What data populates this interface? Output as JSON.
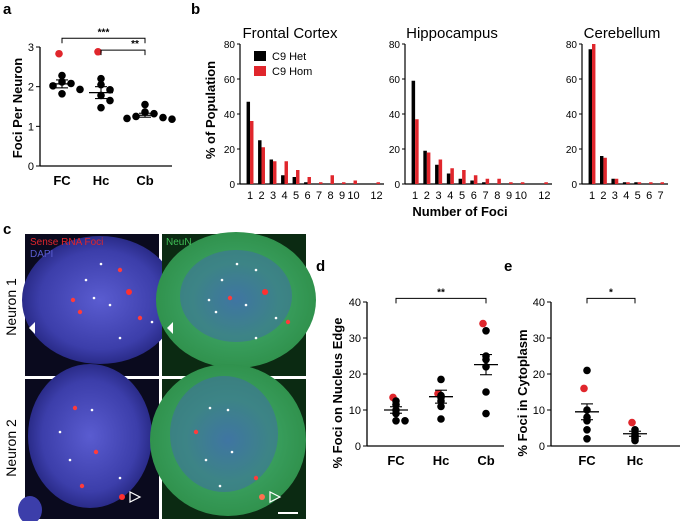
{
  "panel_labels": [
    "a",
    "b",
    "c",
    "d",
    "e"
  ],
  "colors": {
    "het": "#000000",
    "hom": "#e0262c",
    "nucleus": "#2d2f9a",
    "neun": "#2f9a3a"
  },
  "chart_data": [
    {
      "id": "a",
      "type": "scatter",
      "ylabel": "Foci Per Neuron",
      "ylim": [
        0,
        3
      ],
      "yticks": [
        "0",
        "1",
        "2",
        "3"
      ],
      "categories": [
        "FC",
        "Hc",
        "Cb"
      ],
      "points": [
        [
          {
            "y": 2.83,
            "c": "red"
          },
          {
            "y": 2.28,
            "c": "black"
          },
          {
            "y": 2.12,
            "c": "black"
          },
          {
            "y": 2.08,
            "c": "black"
          },
          {
            "y": 2.02,
            "c": "black"
          },
          {
            "y": 1.93,
            "c": "black"
          },
          {
            "y": 1.82,
            "c": "black"
          }
        ],
        [
          {
            "y": 2.88,
            "c": "red"
          },
          {
            "y": 2.2,
            "c": "black"
          },
          {
            "y": 2.05,
            "c": "black"
          },
          {
            "y": 1.92,
            "c": "black"
          },
          {
            "y": 1.78,
            "c": "black"
          },
          {
            "y": 1.65,
            "c": "black"
          },
          {
            "y": 1.47,
            "c": "black"
          }
        ],
        [
          {
            "y": 1.55,
            "c": "black"
          },
          {
            "y": 1.36,
            "c": "black"
          },
          {
            "y": 1.32,
            "c": "black"
          },
          {
            "y": 1.25,
            "c": "black"
          },
          {
            "y": 1.22,
            "c": "black"
          },
          {
            "y": 1.2,
            "c": "black"
          },
          {
            "y": 1.18,
            "c": "black"
          }
        ]
      ],
      "means": [
        2.07,
        1.85,
        1.28
      ],
      "sems": [
        0.1,
        0.15,
        0.05
      ],
      "significance": [
        {
          "from": 0,
          "to": 2,
          "label": "***",
          "y": 3.22
        },
        {
          "from": 1,
          "to": 2,
          "label": "**",
          "y": 2.92
        }
      ]
    },
    {
      "id": "b-frontal",
      "type": "bar",
      "title": "Frontal Cortex",
      "ylabel": "% of Population",
      "ylim": [
        0,
        80
      ],
      "yticks": [
        "0",
        "20",
        "40",
        "60",
        "80"
      ],
      "xlabel": "Number of Foci",
      "categories": [
        "1",
        "2",
        "3",
        "4",
        "5",
        "6",
        "7",
        "8",
        "9",
        "10",
        "11",
        "12"
      ],
      "tick_labels": [
        "1",
        "2",
        "3",
        "4",
        "5",
        "6",
        "7",
        "8",
        "9",
        "10",
        "",
        "12"
      ],
      "series": [
        {
          "name": "C9 Het",
          "values": [
            47,
            25,
            14,
            5,
            4,
            1,
            0,
            0,
            0,
            0,
            0,
            0
          ]
        },
        {
          "name": "C9 Hom",
          "values": [
            36,
            21,
            13,
            13,
            8,
            4,
            1,
            5,
            1,
            2,
            0,
            1
          ]
        }
      ]
    },
    {
      "id": "b-hippocampus",
      "type": "bar",
      "title": "Hippocampus",
      "ylim": [
        0,
        80
      ],
      "yticks": [
        "0",
        "20",
        "40",
        "60",
        "80"
      ],
      "categories": [
        "1",
        "2",
        "3",
        "4",
        "5",
        "6",
        "7",
        "8",
        "9",
        "10",
        "11",
        "12"
      ],
      "tick_labels": [
        "1",
        "2",
        "3",
        "4",
        "5",
        "6",
        "7",
        "8",
        "9",
        "10",
        "",
        "12"
      ],
      "series": [
        {
          "name": "C9 Het",
          "values": [
            59,
            19,
            11,
            6,
            3,
            2,
            1,
            0,
            0,
            0,
            0,
            0
          ]
        },
        {
          "name": "C9 Hom",
          "values": [
            37,
            18,
            14,
            9,
            8,
            5,
            3,
            3,
            1,
            1,
            0,
            1
          ]
        }
      ]
    },
    {
      "id": "b-cerebellum",
      "type": "bar",
      "title": "Cerebellum",
      "ylim": [
        0,
        80
      ],
      "yticks": [
        "0",
        "20",
        "40",
        "60",
        "80"
      ],
      "categories": [
        "1",
        "2",
        "3",
        "4",
        "5",
        "6",
        "7"
      ],
      "tick_labels": [
        "1",
        "2",
        "3",
        "4",
        "5",
        "6",
        "7"
      ],
      "series": [
        {
          "name": "C9 Het",
          "values": [
            77,
            16,
            3,
            1,
            1,
            0,
            0
          ]
        },
        {
          "name": "C9 Hom",
          "values": [
            80,
            15,
            3,
            1,
            1,
            1,
            1
          ]
        }
      ]
    },
    {
      "id": "d",
      "type": "scatter",
      "ylabel": "% Foci on Nucleus Edge",
      "ylim": [
        0,
        40
      ],
      "yticks": [
        "0",
        "10",
        "20",
        "30",
        "40"
      ],
      "categories": [
        "FC",
        "Hc",
        "Cb"
      ],
      "points": [
        [
          {
            "y": 13.5,
            "c": "red"
          },
          {
            "y": 12.5,
            "c": "black"
          },
          {
            "y": 11.5,
            "c": "black"
          },
          {
            "y": 10,
            "c": "black"
          },
          {
            "y": 9,
            "c": "black"
          },
          {
            "y": 7,
            "c": "black"
          },
          {
            "y": 7,
            "c": "black"
          }
        ],
        [
          {
            "y": 18.5,
            "c": "black"
          },
          {
            "y": 14.5,
            "c": "red"
          },
          {
            "y": 14,
            "c": "black"
          },
          {
            "y": 13.5,
            "c": "black"
          },
          {
            "y": 12.5,
            "c": "black"
          },
          {
            "y": 11,
            "c": "black"
          },
          {
            "y": 7.5,
            "c": "black"
          }
        ],
        [
          {
            "y": 34,
            "c": "red"
          },
          {
            "y": 32,
            "c": "black"
          },
          {
            "y": 25,
            "c": "black"
          },
          {
            "y": 24,
            "c": "black"
          },
          {
            "y": 22,
            "c": "black"
          },
          {
            "y": 15,
            "c": "black"
          },
          {
            "y": 9,
            "c": "black"
          }
        ]
      ],
      "means": [
        10.0,
        13.7,
        22.6
      ],
      "sems": [
        0.9,
        1.8,
        2.8
      ],
      "significance": [
        {
          "from": 0,
          "to": 2,
          "label": "**",
          "y": 41
        }
      ]
    },
    {
      "id": "e",
      "type": "scatter",
      "ylabel": "% Foci in Cytoplasm",
      "ylim": [
        0,
        40
      ],
      "yticks": [
        "0",
        "10",
        "20",
        "30",
        "40"
      ],
      "categories": [
        "FC",
        "Hc"
      ],
      "points": [
        [
          {
            "y": 21,
            "c": "black"
          },
          {
            "y": 16,
            "c": "red"
          },
          {
            "y": 10,
            "c": "black"
          },
          {
            "y": 8,
            "c": "black"
          },
          {
            "y": 7,
            "c": "black"
          },
          {
            "y": 4.5,
            "c": "black"
          },
          {
            "y": 2,
            "c": "black"
          }
        ],
        [
          {
            "y": 6.5,
            "c": "red"
          },
          {
            "y": 4.5,
            "c": "black"
          },
          {
            "y": 3.5,
            "c": "black"
          },
          {
            "y": 3,
            "c": "black"
          },
          {
            "y": 2.5,
            "c": "black"
          },
          {
            "y": 2,
            "c": "black"
          },
          {
            "y": 1.5,
            "c": "black"
          }
        ]
      ],
      "means": [
        9.5,
        3.4
      ],
      "sems": [
        2.2,
        0.7
      ],
      "significance": [
        {
          "from": 0,
          "to": 1,
          "label": "*",
          "y": 41
        }
      ]
    }
  ],
  "micrographs": {
    "channel_sense": "Sense RNA Foci",
    "channel_dapi": "DAPI",
    "channel_neun": "NeuN",
    "rows": [
      "Neuron 1",
      "Neuron 2"
    ]
  }
}
